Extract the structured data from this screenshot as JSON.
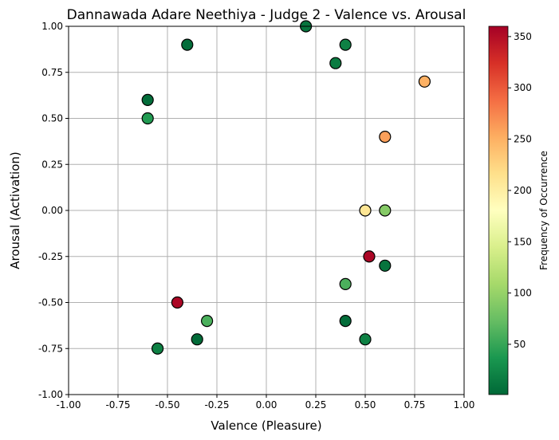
{
  "chart_data": {
    "type": "scatter",
    "title": "Dannawada Adare Neethiya - Judge 2 - Valence vs. Arousal",
    "xlabel": "Valence (Pleasure)",
    "ylabel": "Arousal (Activation)",
    "xlim": [
      -1.0,
      1.0
    ],
    "ylim": [
      -1.0,
      1.0
    ],
    "xticks": [
      "-1.00",
      "-0.75",
      "-0.50",
      "-0.25",
      "0.00",
      "0.25",
      "0.50",
      "0.75",
      "1.00"
    ],
    "yticks": [
      "-1.00",
      "-0.75",
      "-0.50",
      "-0.25",
      "0.00",
      "0.25",
      "0.50",
      "0.75",
      "1.00"
    ],
    "grid": true,
    "colorbar": {
      "label": "Frequency of Occurrence",
      "colormap": "RdYlGn_r",
      "range": [
        1,
        360
      ],
      "ticks": [
        "50",
        "100",
        "150",
        "200",
        "250",
        "300",
        "350"
      ]
    },
    "points": [
      {
        "x": 0.2,
        "y": 1.0,
        "freq": 10
      },
      {
        "x": -0.4,
        "y": 0.9,
        "freq": 5
      },
      {
        "x": 0.4,
        "y": 0.9,
        "freq": 20
      },
      {
        "x": 0.35,
        "y": 0.8,
        "freq": 15
      },
      {
        "x": 0.8,
        "y": 0.7,
        "freq": 250
      },
      {
        "x": -0.6,
        "y": 0.6,
        "freq": 5
      },
      {
        "x": -0.6,
        "y": 0.5,
        "freq": 40
      },
      {
        "x": 0.6,
        "y": 0.4,
        "freq": 260
      },
      {
        "x": 0.5,
        "y": 0.0,
        "freq": 210
      },
      {
        "x": 0.6,
        "y": 0.0,
        "freq": 90
      },
      {
        "x": 0.52,
        "y": -0.25,
        "freq": 355
      },
      {
        "x": 0.6,
        "y": -0.3,
        "freq": 10
      },
      {
        "x": 0.4,
        "y": -0.4,
        "freq": 60
      },
      {
        "x": -0.45,
        "y": -0.5,
        "freq": 355
      },
      {
        "x": -0.3,
        "y": -0.6,
        "freq": 60
      },
      {
        "x": 0.4,
        "y": -0.6,
        "freq": 5
      },
      {
        "x": -0.35,
        "y": -0.7,
        "freq": 3
      },
      {
        "x": 0.5,
        "y": -0.7,
        "freq": 20
      },
      {
        "x": -0.55,
        "y": -0.75,
        "freq": 20
      }
    ]
  }
}
